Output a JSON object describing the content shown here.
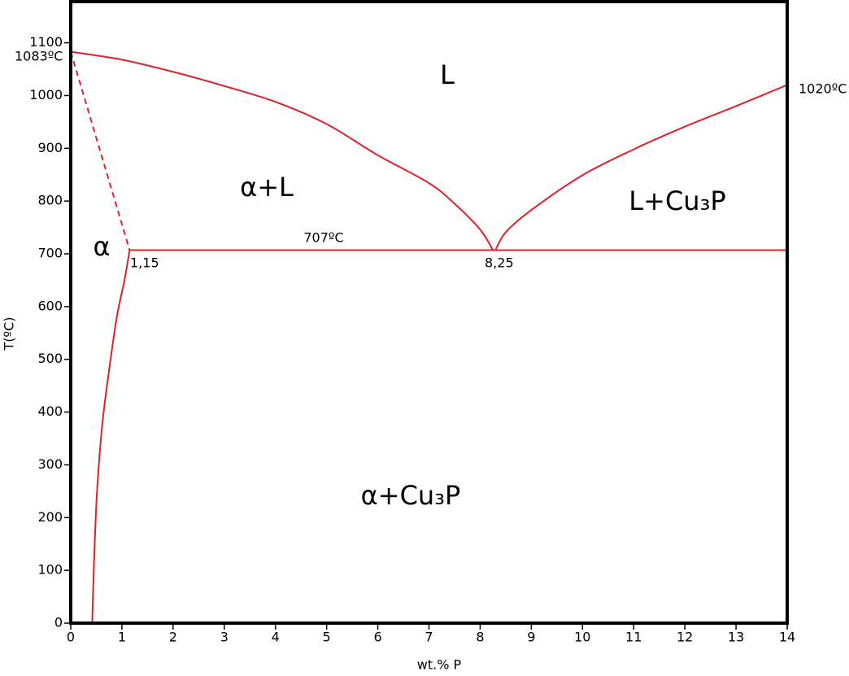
{
  "chart_data": {
    "type": "line",
    "xlabel": "wt.% P",
    "ylabel": "T(ºC)",
    "xlim": [
      0,
      14
    ],
    "ylim": [
      0,
      1178
    ],
    "xticks": [
      0,
      1,
      2,
      3,
      4,
      5,
      6,
      7,
      8,
      9,
      10,
      11,
      12,
      13,
      14
    ],
    "yticks": [
      0,
      100,
      200,
      300,
      400,
      500,
      600,
      700,
      800,
      900,
      1000,
      1100
    ],
    "series": [
      {
        "color": "#e0202a",
        "style": "solid",
        "x": [
          0,
          1,
          2,
          3,
          4,
          5,
          6,
          7,
          7.5,
          8,
          8.25
        ],
        "values": [
          1083,
          1068,
          1045,
          1018,
          988,
          946,
          887,
          834,
          795,
          746,
          707
        ]
      },
      {
        "color": "#e0202a",
        "style": "solid",
        "x": [
          8.3,
          8.5,
          9,
          10,
          11,
          12,
          13,
          14
        ],
        "values": [
          707,
          741,
          783,
          849,
          898,
          941,
          980,
          1020
        ]
      },
      {
        "color": "#e0202a",
        "style": "solid",
        "x": [
          1.15,
          14
        ],
        "values": [
          707,
          707
        ]
      },
      {
        "color": "#e0202a",
        "style": "dashed",
        "x": [
          0,
          1.15
        ],
        "values": [
          1083,
          707
        ]
      },
      {
        "color": "#e0202a",
        "style": "solid",
        "x": [
          1.15,
          1.05,
          0.9,
          0.75,
          0.62,
          0.52,
          0.46,
          0.42
        ],
        "values": [
          707,
          650,
          580,
          480,
          380,
          260,
          130,
          0
        ]
      }
    ],
    "annotations": [
      "1083ºC",
      "1020ºC",
      "707ºC",
      "1,15",
      "8,25",
      "L",
      "α+L",
      "α",
      "L+Cu₃P",
      "α+Cu₃P"
    ]
  }
}
